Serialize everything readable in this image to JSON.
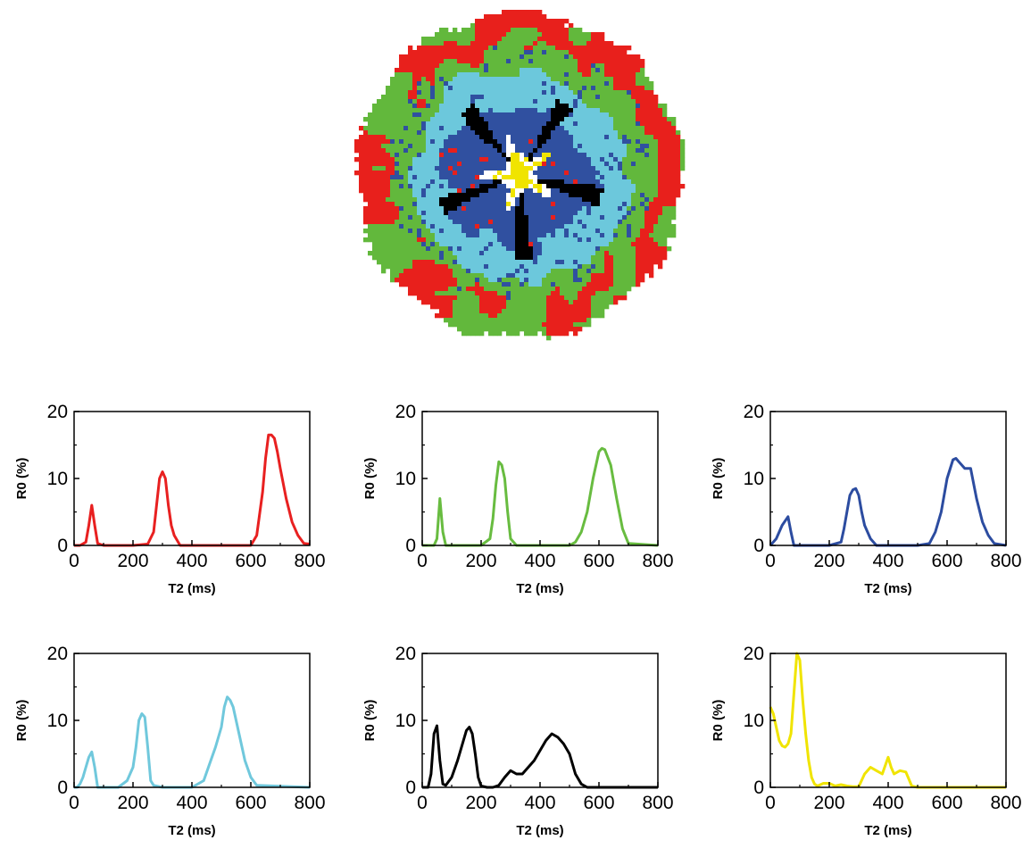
{
  "map": {
    "colors": {
      "red": "#e8201c",
      "green": "#62b83c",
      "cyan": "#6cc8dc",
      "blue": "#3050a0",
      "black": "#000000",
      "white": "#ffffff",
      "yellow": "#f0e400"
    }
  },
  "chart_data": [
    {
      "type": "line",
      "color": "#e82020",
      "xlabel": "T2 (ms)",
      "ylabel": "R0 (%)",
      "xlim": [
        0,
        800
      ],
      "ylim": [
        0,
        20
      ],
      "xticks": [
        0,
        200,
        400,
        600,
        800
      ],
      "yticks": [
        0,
        10,
        20
      ],
      "x": [
        0,
        20,
        40,
        50,
        60,
        70,
        80,
        100,
        150,
        200,
        250,
        270,
        280,
        290,
        300,
        310,
        320,
        330,
        340,
        360,
        400,
        500,
        600,
        620,
        640,
        650,
        660,
        670,
        680,
        690,
        700,
        720,
        740,
        760,
        780,
        800
      ],
      "y": [
        0,
        0,
        0.5,
        3,
        6,
        3,
        0.3,
        0,
        0,
        0,
        0.2,
        2,
        6,
        10,
        11,
        10,
        6,
        3,
        1.5,
        0,
        0,
        0,
        0,
        1.5,
        8,
        13,
        16.5,
        16.5,
        16,
        14,
        11.5,
        7,
        3.5,
        1.5,
        0.3,
        0.2
      ]
    },
    {
      "type": "line",
      "color": "#68bc40",
      "xlabel": "T2 (ms)",
      "ylabel": "R0 (%)",
      "xlim": [
        0,
        800
      ],
      "ylim": [
        0,
        20
      ],
      "xticks": [
        0,
        200,
        400,
        600,
        800
      ],
      "yticks": [
        0,
        10,
        20
      ],
      "x": [
        0,
        40,
        50,
        60,
        70,
        80,
        100,
        200,
        230,
        240,
        250,
        260,
        270,
        280,
        290,
        300,
        320,
        400,
        500,
        520,
        540,
        560,
        580,
        600,
        610,
        620,
        640,
        660,
        680,
        700,
        800
      ],
      "y": [
        0,
        0,
        1,
        7,
        2,
        0,
        0,
        0,
        1,
        4,
        9,
        12.5,
        12,
        10,
        5,
        1,
        0,
        0,
        0,
        0.5,
        2,
        5,
        10,
        14,
        14.5,
        14.3,
        12,
        7,
        2.5,
        0.3,
        0
      ]
    },
    {
      "type": "line",
      "color": "#2c4ca0",
      "xlabel": "T2 (ms)",
      "ylabel": "R0 (%)",
      "xlim": [
        0,
        800
      ],
      "ylim": [
        0,
        20
      ],
      "xticks": [
        0,
        200,
        400,
        600,
        800
      ],
      "yticks": [
        0,
        10,
        20
      ],
      "x": [
        0,
        20,
        40,
        60,
        70,
        80,
        100,
        200,
        240,
        250,
        260,
        270,
        280,
        290,
        300,
        310,
        320,
        340,
        360,
        400,
        500,
        540,
        560,
        580,
        600,
        620,
        630,
        640,
        660,
        680,
        700,
        720,
        740,
        760,
        800
      ],
      "y": [
        0,
        1,
        3,
        4.3,
        2,
        0,
        0,
        0,
        0.5,
        2.5,
        5,
        7.5,
        8.3,
        8.5,
        7.5,
        5,
        3,
        1,
        0,
        0,
        0,
        0.3,
        2,
        5,
        10,
        12.8,
        13,
        12.5,
        11.5,
        11.5,
        7,
        3.5,
        1.5,
        0.3,
        0
      ]
    },
    {
      "type": "line",
      "color": "#70c8dc",
      "xlabel": "T2 (ms)",
      "ylabel": "R0 (%)",
      "xlim": [
        0,
        800
      ],
      "ylim": [
        0,
        20
      ],
      "xticks": [
        0,
        200,
        400,
        600,
        800
      ],
      "yticks": [
        0,
        10,
        20
      ],
      "x": [
        0,
        10,
        20,
        30,
        40,
        50,
        60,
        70,
        80,
        100,
        150,
        180,
        200,
        210,
        220,
        230,
        240,
        250,
        260,
        270,
        300,
        400,
        440,
        460,
        480,
        500,
        510,
        520,
        530,
        540,
        560,
        580,
        600,
        620,
        800
      ],
      "y": [
        0,
        0,
        0.5,
        1.5,
        3,
        4.5,
        5.3,
        3,
        0,
        0,
        0,
        1,
        3,
        6,
        10,
        11,
        10.5,
        6,
        1,
        0.3,
        0,
        0,
        1,
        3.5,
        6,
        9,
        12,
        13.5,
        13,
        12,
        8,
        4,
        1.5,
        0.3,
        0
      ]
    },
    {
      "type": "line",
      "color": "#000000",
      "xlabel": "T2 (ms)",
      "ylabel": "R0 (%)",
      "xlim": [
        0,
        800
      ],
      "ylim": [
        0,
        20
      ],
      "xticks": [
        0,
        200,
        400,
        600,
        800
      ],
      "yticks": [
        0,
        10,
        20
      ],
      "x": [
        0,
        20,
        30,
        40,
        50,
        60,
        70,
        80,
        100,
        120,
        140,
        150,
        160,
        170,
        180,
        190,
        200,
        220,
        240,
        260,
        280,
        300,
        320,
        340,
        360,
        380,
        400,
        420,
        440,
        460,
        480,
        500,
        520,
        540,
        560,
        600,
        800
      ],
      "y": [
        0,
        0,
        2,
        8,
        9.2,
        4,
        0.5,
        0.3,
        1.5,
        4,
        7,
        8.5,
        9,
        8,
        5,
        1.5,
        0.2,
        0,
        0,
        0.3,
        1.5,
        2.5,
        2,
        2,
        3,
        4,
        5.5,
        7,
        8,
        7.5,
        6.5,
        5,
        2,
        0.5,
        0,
        0,
        0
      ]
    },
    {
      "type": "line",
      "color": "#f0e400",
      "xlabel": "T2 (ms)",
      "ylabel": "R0 (%)",
      "xlim": [
        0,
        800
      ],
      "ylim": [
        0,
        20
      ],
      "xticks": [
        0,
        200,
        400,
        600,
        800
      ],
      "yticks": [
        0,
        10,
        20
      ],
      "x": [
        0,
        10,
        20,
        30,
        40,
        50,
        60,
        70,
        80,
        90,
        100,
        110,
        120,
        130,
        140,
        150,
        160,
        180,
        200,
        220,
        240,
        260,
        280,
        300,
        320,
        340,
        360,
        380,
        400,
        410,
        420,
        440,
        460,
        480,
        500,
        800
      ],
      "y": [
        12,
        11,
        9,
        7,
        6.2,
        6,
        6.5,
        8,
        14,
        20,
        19,
        13,
        8,
        4,
        1.5,
        0.5,
        0.2,
        0.6,
        0.6,
        0.2,
        0.4,
        0.2,
        0.1,
        0.1,
        2,
        3,
        2.5,
        2,
        4.5,
        3,
        2,
        2.5,
        2.3,
        0.2,
        0,
        0
      ]
    }
  ]
}
